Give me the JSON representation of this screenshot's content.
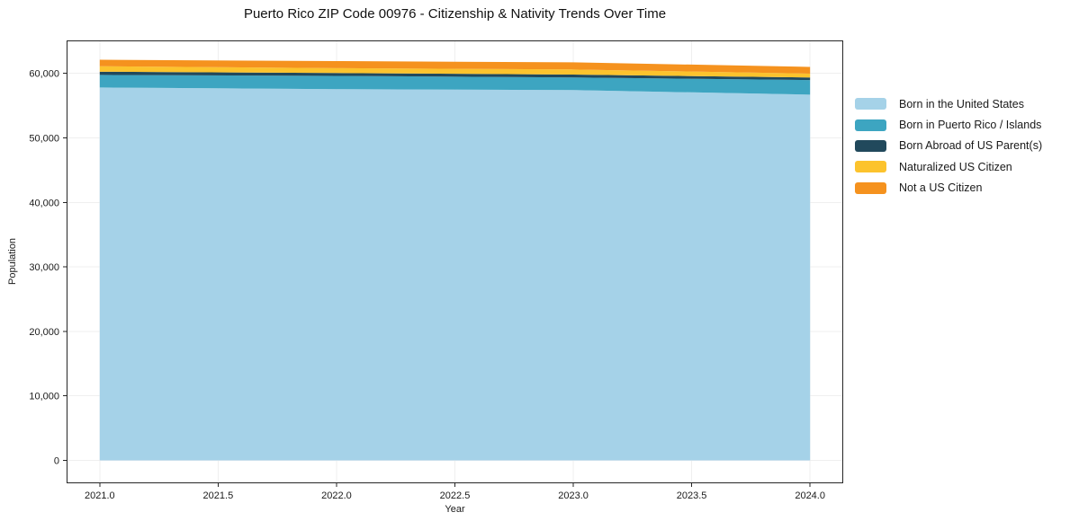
{
  "chart_data": {
    "type": "area",
    "stacked": true,
    "title": "Puerto Rico ZIP Code 00976 - Citizenship & Nativity Trends Over Time",
    "xlabel": "Year",
    "ylabel": "Population",
    "x": [
      2021,
      2022,
      2023,
      2024
    ],
    "series": [
      {
        "name": "Born in the United States",
        "color": "#a5d2e8",
        "values": [
          57800,
          57550,
          57400,
          56700
        ]
      },
      {
        "name": "Born in Puerto Rico / Islands",
        "color": "#3da5c1",
        "values": [
          1950,
          2050,
          1950,
          2250
        ]
      },
      {
        "name": "Born Abroad of US Parent(s)",
        "color": "#21495c",
        "values": [
          500,
          450,
          450,
          400
        ]
      },
      {
        "name": "Naturalized US Citizen",
        "color": "#fcc32d",
        "values": [
          850,
          750,
          800,
          600
        ]
      },
      {
        "name": "Not a US Citizen",
        "color": "#f5921e",
        "values": [
          1000,
          1100,
          1100,
          1050
        ]
      }
    ],
    "xlim": [
      2020.86,
      2024.14
    ],
    "ylim": [
      -3550,
      65100
    ],
    "xtick_values": [
      2021.0,
      2021.5,
      2022.0,
      2022.5,
      2023.0,
      2023.5,
      2024.0
    ],
    "xticks": [
      "2021.0",
      "2021.5",
      "2022.0",
      "2022.5",
      "2023.0",
      "2023.5",
      "2024.0"
    ],
    "ytick_values": [
      0,
      10000,
      20000,
      30000,
      40000,
      50000,
      60000
    ],
    "yticks": [
      "0",
      "10,000",
      "20,000",
      "30,000",
      "40,000",
      "50,000",
      "60,000"
    ],
    "grid": true,
    "grid_color": "#efefef",
    "spine_color": "#262626",
    "legend_position": "right-outside",
    "background_color": "#ffffff"
  }
}
